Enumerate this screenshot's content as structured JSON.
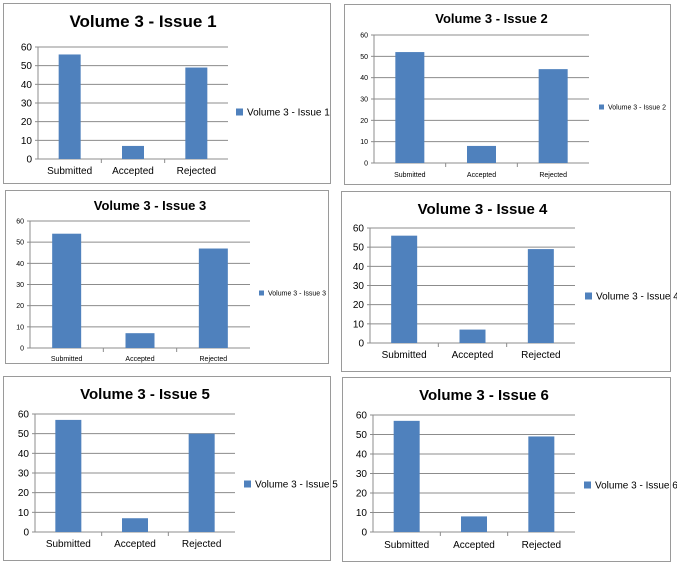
{
  "colors": {
    "bar": "#4f81bd",
    "grid": "#8c8c8c",
    "axis": "#8c8c8c",
    "panel_border": "#9a9a9a"
  },
  "chart_data": [
    {
      "type": "bar",
      "title": "Volume 3 - Issue 1",
      "categories": [
        "Submitted",
        "Accepted",
        "Rejected"
      ],
      "series": [
        {
          "name": "Volume 3 - Issue 1",
          "values": [
            56,
            7,
            49
          ]
        }
      ],
      "ylim": [
        0,
        60
      ],
      "yticks": [
        0,
        10,
        20,
        30,
        40,
        50,
        60
      ],
      "grid": true,
      "legend": "right"
    },
    {
      "type": "bar",
      "title": "Volume 3 - Issue 2",
      "categories": [
        "Submitted",
        "Accepted",
        "Rejected"
      ],
      "series": [
        {
          "name": "Volume 3 - Issue 2",
          "values": [
            52,
            8,
            44
          ]
        }
      ],
      "ylim": [
        0,
        60
      ],
      "yticks": [
        0,
        10,
        20,
        30,
        40,
        50,
        60
      ],
      "grid": true,
      "legend": "right"
    },
    {
      "type": "bar",
      "title": "Volume 3 - Issue 3",
      "categories": [
        "Submitted",
        "Accepted",
        "Rejected"
      ],
      "series": [
        {
          "name": "Volume 3 - Issue 3",
          "values": [
            54,
            7,
            47
          ]
        }
      ],
      "ylim": [
        0,
        60
      ],
      "yticks": [
        0,
        10,
        20,
        30,
        40,
        50,
        60
      ],
      "grid": true,
      "legend": "right"
    },
    {
      "type": "bar",
      "title": "Volume 3 - Issue 4",
      "categories": [
        "Submitted",
        "Accepted",
        "Rejected"
      ],
      "series": [
        {
          "name": "Volume 3 - Issue 4",
          "values": [
            56,
            7,
            49
          ]
        }
      ],
      "ylim": [
        0,
        60
      ],
      "yticks": [
        0,
        10,
        20,
        30,
        40,
        50,
        60
      ],
      "grid": true,
      "legend": "right"
    },
    {
      "type": "bar",
      "title": "Volume 3 - Issue 5",
      "categories": [
        "Submitted",
        "Accepted",
        "Rejected"
      ],
      "series": [
        {
          "name": "Volume 3 - Issue 5",
          "values": [
            57,
            7,
            50
          ]
        }
      ],
      "ylim": [
        0,
        60
      ],
      "yticks": [
        0,
        10,
        20,
        30,
        40,
        50,
        60
      ],
      "grid": true,
      "legend": "right"
    },
    {
      "type": "bar",
      "title": "Volume 3 - Issue 6",
      "categories": [
        "Submitted",
        "Accepted",
        "Rejected"
      ],
      "series": [
        {
          "name": "Volume 3 - Issue 6",
          "values": [
            57,
            8,
            49
          ]
        }
      ],
      "ylim": [
        0,
        60
      ],
      "yticks": [
        0,
        10,
        20,
        30,
        40,
        50,
        60
      ],
      "grid": true,
      "legend": "right"
    }
  ]
}
